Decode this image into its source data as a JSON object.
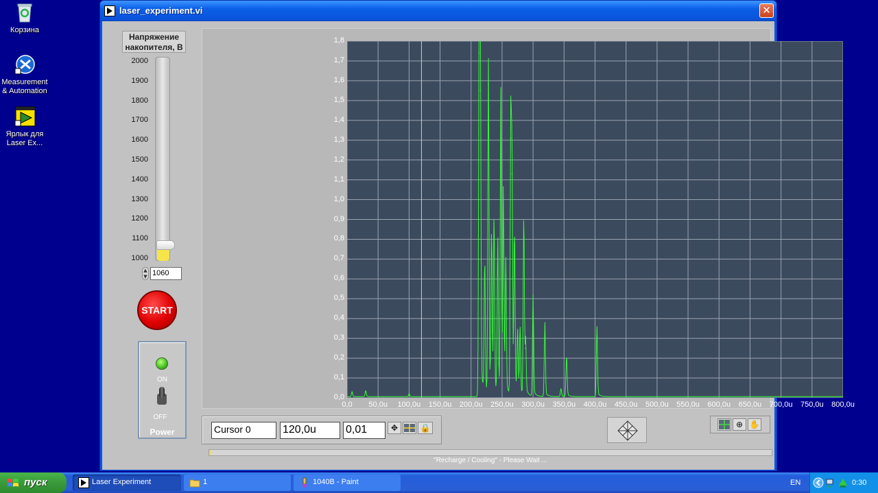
{
  "desktop": {
    "icons": [
      {
        "label": "Корзина",
        "icon": "recycle-bin-icon"
      },
      {
        "label": "Measurement & Automation",
        "icon": "measurement-automation-icon"
      },
      {
        "label": "Ярлык для Laser Ex...",
        "icon": "labview-shortcut-icon"
      }
    ]
  },
  "window": {
    "title": "laser_experiment.vi",
    "close_label": "✕"
  },
  "slider": {
    "label_line1": "Напряжение",
    "label_line2": "накопителя, В",
    "scale": [
      "2000",
      "1900",
      "1800",
      "1700",
      "1600",
      "1500",
      "1400",
      "1300",
      "1200",
      "1100",
      "1000"
    ],
    "range": [
      1000,
      2000
    ],
    "value": 1060,
    "value_text": "1060",
    "fill_color": "#f5e44a"
  },
  "start_button": {
    "label": "START",
    "color": "#e00000"
  },
  "power": {
    "on_label": "ON",
    "off_label": "OFF",
    "title": "Power",
    "led_color": "#3ec01b"
  },
  "chart_data": {
    "type": "line",
    "title": "",
    "xlabel": "",
    "ylabel": "",
    "xlim": [
      0,
      800
    ],
    "ylim": [
      0,
      1.8
    ],
    "grid": true,
    "y_ticks": [
      "0,0",
      "0,1",
      "0,2",
      "0,3",
      "0,4",
      "0,5",
      "0,6",
      "0,7",
      "0,8",
      "0,9",
      "1,0",
      "1,1",
      "1,2",
      "1,3",
      "1,4",
      "1,5",
      "1,6",
      "1,7",
      "1,8"
    ],
    "x_ticks": [
      "0,0",
      "50,0u",
      "100,0u",
      "150,0u",
      "200,0u",
      "250,0u",
      "300,0u",
      "350,0u",
      "400,0u",
      "450,0u",
      "500,0u",
      "550,0u",
      "600,0u",
      "650,0u",
      "700,0u",
      "750,0u",
      "800,0u"
    ],
    "background_color": "#3c4a5e",
    "line_color": "#33ff33",
    "cursor_color": "#ffd23c",
    "cursor_x": 120,
    "peaks": [
      {
        "x": 8,
        "y": 0.025
      },
      {
        "x": 30,
        "y": 0.03
      },
      {
        "x": 100,
        "y": 0.015
      },
      {
        "x": 213,
        "y": 1.74
      },
      {
        "x": 215,
        "y": 1.55
      },
      {
        "x": 222,
        "y": 0.65
      },
      {
        "x": 228,
        "y": 1.58
      },
      {
        "x": 233,
        "y": 0.8
      },
      {
        "x": 237,
        "y": 0.88
      },
      {
        "x": 243,
        "y": 0.75
      },
      {
        "x": 248,
        "y": 1.44
      },
      {
        "x": 252,
        "y": 0.95
      },
      {
        "x": 256,
        "y": 0.62
      },
      {
        "x": 264,
        "y": 1.31
      },
      {
        "x": 266,
        "y": 1.13
      },
      {
        "x": 270,
        "y": 0.78
      },
      {
        "x": 275,
        "y": 0.3
      },
      {
        "x": 279,
        "y": 0.32
      },
      {
        "x": 285,
        "y": 0.9
      },
      {
        "x": 288,
        "y": 0.25
      },
      {
        "x": 300,
        "y": 0.48
      },
      {
        "x": 319,
        "y": 0.36
      },
      {
        "x": 345,
        "y": 0.04
      },
      {
        "x": 354,
        "y": 0.2
      },
      {
        "x": 403,
        "y": 0.34
      }
    ]
  },
  "cursor_palette": {
    "name": "Cursor 0",
    "x_value": "120,0u",
    "y_value": "0,01"
  },
  "status": {
    "message": "\"Recharge  / Cooling\" - Please Wait ...",
    "progress": 0.003
  },
  "taskbar": {
    "start_label": "пуск",
    "tasks": [
      {
        "label": "Laser Experiment",
        "icon": "labview-icon",
        "active": true
      },
      {
        "label": "1",
        "icon": "folder-icon",
        "active": false
      },
      {
        "label": "1040B - Paint",
        "icon": "paint-icon",
        "active": false
      }
    ],
    "lang": "EN",
    "clock": "0:30"
  }
}
